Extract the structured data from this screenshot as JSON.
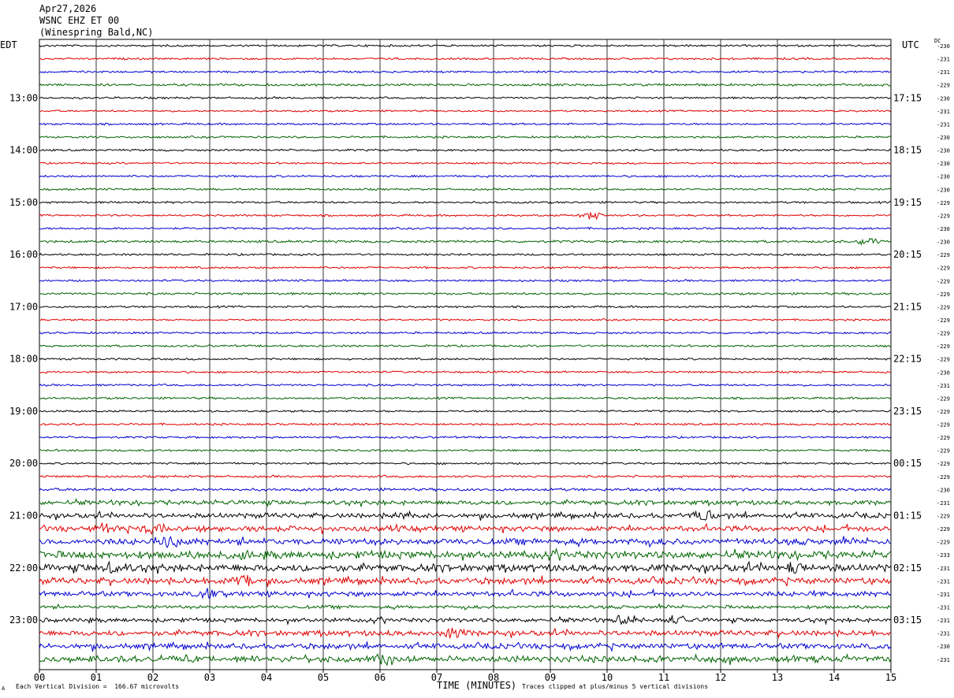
{
  "header": {
    "date": "Apr27,2026",
    "channel": "WSNC EHZ ET 00",
    "location": "(Winespring Bald,NC)"
  },
  "left_zone": "EDT",
  "right_zone": "UTC",
  "dc_label": "DC",
  "footer": {
    "scale_note": "Each Vertical Division =  166.67 microvolts",
    "x_title": "TIME (MINUTES)",
    "clip_note": "Traces clipped at plus/minus 5 vertical divisions",
    "corner_mark": "A"
  },
  "colors": {
    "trace_cycle": [
      "#000000",
      "#e00000",
      "#0000d0",
      "#006400"
    ],
    "grid": "#000000"
  },
  "chart_data": {
    "type": "line",
    "title": "",
    "xlabel": "TIME (MINUTES)",
    "x_ticks": [
      "00",
      "01",
      "02",
      "03",
      "04",
      "05",
      "06",
      "07",
      "08",
      "09",
      "10",
      "11",
      "12",
      "13",
      "14",
      "15"
    ],
    "xlim": [
      0,
      15
    ],
    "trace_count": 48,
    "traces_per_hour": 4,
    "left_hour_labels": [
      "13:00",
      "14:00",
      "15:00",
      "16:00",
      "17:00",
      "18:00",
      "19:00",
      "20:00",
      "21:00",
      "22:00",
      "23:00"
    ],
    "right_hour_labels": [
      "17:15",
      "18:15",
      "19:15",
      "20:15",
      "21:15",
      "22:15",
      "23:15",
      "00:15",
      "01:15",
      "02:15",
      "03:15"
    ],
    "dc_offsets": [
      "-230",
      "-231",
      "-231",
      "-229",
      "-230",
      "-231",
      "-231",
      "-230",
      "-230",
      "-230",
      "-230",
      "-230",
      "-229",
      "-229",
      "-230",
      "-230",
      "-229",
      "-229",
      "-229",
      "-229",
      "-229",
      "-229",
      "-229",
      "-229",
      "-229",
      "-230",
      "-231",
      "-229",
      "-229",
      "-229",
      "-229",
      "-229",
      "-229",
      "-229",
      "-230",
      "-231",
      "-229",
      "-229",
      "-229",
      "-233",
      "-231",
      "-231",
      "-231",
      "-231",
      "-231",
      "-231",
      "-230",
      "-231"
    ],
    "relative_amplitude": [
      1.0,
      1.0,
      1.0,
      1.2,
      1.0,
      0.9,
      1.0,
      1.0,
      1.0,
      0.9,
      1.0,
      1.0,
      1.0,
      1.0,
      1.0,
      1.2,
      1.0,
      1.0,
      1.0,
      1.1,
      1.0,
      0.9,
      1.0,
      1.0,
      1.0,
      1.0,
      1.0,
      1.0,
      1.0,
      1.0,
      1.0,
      1.0,
      1.0,
      1.1,
      1.4,
      2.2,
      2.4,
      2.6,
      3.0,
      3.6,
      3.6,
      3.0,
      2.4,
      1.6,
      2.0,
      2.6,
      2.6,
      3.0
    ],
    "events": [
      {
        "trace": 13,
        "minute": 9.7,
        "amplitude": 5
      },
      {
        "trace": 15,
        "minute": 14.6,
        "amplitude": 4
      },
      {
        "trace": 36,
        "minute": 6.4,
        "amplitude": 5
      },
      {
        "trace": 36,
        "minute": 11.7,
        "amplitude": 5
      },
      {
        "trace": 37,
        "minute": 1.2,
        "amplitude": 4
      },
      {
        "trace": 37,
        "minute": 2.0,
        "amplitude": 5
      },
      {
        "trace": 38,
        "minute": 2.3,
        "amplitude": 5
      },
      {
        "trace": 39,
        "minute": 3.6,
        "amplitude": 5
      },
      {
        "trace": 40,
        "minute": 1.3,
        "amplitude": 5
      },
      {
        "trace": 40,
        "minute": 13.3,
        "amplitude": 5
      },
      {
        "trace": 41,
        "minute": 3.6,
        "amplitude": 6
      },
      {
        "trace": 42,
        "minute": 3.0,
        "amplitude": 4
      },
      {
        "trace": 44,
        "minute": 10.3,
        "amplitude": 5
      },
      {
        "trace": 44,
        "minute": 11.2,
        "amplitude": 4
      },
      {
        "trace": 45,
        "minute": 7.3,
        "amplitude": 5
      },
      {
        "trace": 47,
        "minute": 6.1,
        "amplitude": 5
      }
    ]
  }
}
